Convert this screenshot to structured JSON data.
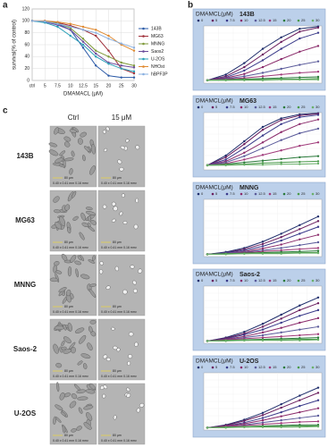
{
  "panel_labels": [
    "a",
    "b",
    "c"
  ],
  "chart_data": [
    {
      "type": "line",
      "y_label": "survival(% of control)",
      "x_label": "DMAMACL (μM)",
      "categories": [
        "ctrl",
        "5",
        "7.5",
        "10",
        "12.5",
        "15",
        "20",
        "25",
        "30"
      ],
      "ylim": [
        0,
        120
      ],
      "yticks": [
        0,
        20,
        40,
        60,
        80,
        100,
        120
      ],
      "grid": true,
      "legend": "right",
      "series": [
        {
          "name": "143B",
          "color": "#2e5ca8",
          "values": [
            100,
            98,
            95,
            85,
            55,
            25,
            8,
            5,
            5
          ]
        },
        {
          "name": "MG63",
          "color": "#a0303a",
          "values": [
            100,
            100,
            97,
            92,
            85,
            75,
            50,
            20,
            12
          ]
        },
        {
          "name": "MNNG",
          "color": "#7f9a3a",
          "values": [
            100,
            99,
            96,
            88,
            70,
            50,
            40,
            30,
            25
          ]
        },
        {
          "name": "Saos2",
          "color": "#6a4a9a",
          "values": [
            100,
            98,
            93,
            85,
            65,
            45,
            30,
            25,
            22
          ]
        },
        {
          "name": "U-2OS",
          "color": "#2aa0b8",
          "values": [
            100,
            97,
            90,
            75,
            60,
            40,
            28,
            20,
            15
          ]
        },
        {
          "name": "NHOst",
          "color": "#e08a30",
          "values": [
            100,
            100,
            98,
            95,
            90,
            85,
            75,
            60,
            50
          ]
        },
        {
          "name": "hBPF3P",
          "color": "#8ab0e0",
          "values": [
            100,
            99,
            95,
            90,
            85,
            80,
            70,
            62,
            55
          ]
        }
      ]
    },
    {
      "type": "line",
      "title": "DMAMCL(μM)",
      "subtitle": "143B",
      "ylim": [
        0,
        100
      ],
      "series": [
        {
          "name": "0",
          "color": "#1f2d6b",
          "values": [
            5,
            15,
            35,
            60,
            80,
            95,
            99
          ]
        },
        {
          "name": "5",
          "color": "#6b1f5f",
          "values": [
            5,
            12,
            28,
            50,
            72,
            90,
            97
          ]
        },
        {
          "name": "7.5",
          "color": "#3a3a8a",
          "values": [
            5,
            10,
            22,
            40,
            60,
            78,
            88
          ]
        },
        {
          "name": "10",
          "color": "#8a2a6a",
          "values": [
            5,
            9,
            16,
            28,
            42,
            55,
            65
          ]
        },
        {
          "name": "12.5",
          "color": "#5a5a9a",
          "values": [
            5,
            8,
            12,
            18,
            25,
            32,
            38
          ]
        },
        {
          "name": "15",
          "color": "#a03a7a",
          "values": [
            5,
            7,
            9,
            12,
            15,
            18,
            20
          ]
        },
        {
          "name": "20",
          "color": "#2a7a3a",
          "values": [
            5,
            6,
            7,
            8,
            9,
            10,
            11
          ]
        },
        {
          "name": "25",
          "color": "#4a9a4a",
          "values": [
            5,
            5,
            6,
            6,
            7,
            7,
            8
          ]
        },
        {
          "name": "30",
          "color": "#6ab06a",
          "values": [
            5,
            5,
            5,
            5,
            6,
            6,
            6
          ]
        }
      ]
    },
    {
      "type": "line",
      "title": "DMAMCL(μM)",
      "subtitle": "MG63",
      "ylim": [
        0,
        100
      ],
      "series": [
        {
          "name": "0",
          "color": "#1f2d6b",
          "values": [
            8,
            25,
            50,
            75,
            90,
            97,
            99
          ]
        },
        {
          "name": "5",
          "color": "#6b1f5f",
          "values": [
            8,
            22,
            45,
            70,
            87,
            95,
            98
          ]
        },
        {
          "name": "7.5",
          "color": "#3a3a8a",
          "values": [
            8,
            18,
            38,
            60,
            80,
            92,
            96
          ]
        },
        {
          "name": "10",
          "color": "#8a2a6a",
          "values": [
            8,
            15,
            30,
            48,
            66,
            80,
            88
          ]
        },
        {
          "name": "12.5",
          "color": "#5a5a9a",
          "values": [
            8,
            13,
            24,
            38,
            52,
            64,
            72
          ]
        },
        {
          "name": "15",
          "color": "#a03a7a",
          "values": [
            8,
            11,
            18,
            26,
            34,
            42,
            48
          ]
        },
        {
          "name": "20",
          "color": "#2a7a3a",
          "values": [
            8,
            10,
            13,
            16,
            19,
            22,
            24
          ]
        },
        {
          "name": "25",
          "color": "#4a9a4a",
          "values": [
            8,
            9,
            10,
            12,
            13,
            14,
            15
          ]
        },
        {
          "name": "30",
          "color": "#6ab06a",
          "values": [
            8,
            8,
            9,
            9,
            10,
            10,
            11
          ]
        }
      ]
    },
    {
      "type": "line",
      "title": "DMAMCL(μM)",
      "subtitle": "MNNG",
      "ylim": [
        0,
        100
      ],
      "series": [
        {
          "name": "0",
          "color": "#1f2d6b",
          "values": [
            4,
            8,
            15,
            26,
            40,
            55,
            70
          ]
        },
        {
          "name": "5",
          "color": "#6b1f5f",
          "values": [
            4,
            7,
            13,
            22,
            34,
            48,
            62
          ]
        },
        {
          "name": "7.5",
          "color": "#3a3a8a",
          "values": [
            4,
            7,
            11,
            18,
            28,
            40,
            52
          ]
        },
        {
          "name": "10",
          "color": "#8a2a6a",
          "values": [
            4,
            6,
            9,
            14,
            21,
            30,
            38
          ]
        },
        {
          "name": "12.5",
          "color": "#5a5a9a",
          "values": [
            4,
            6,
            8,
            11,
            15,
            20,
            25
          ]
        },
        {
          "name": "15",
          "color": "#a03a7a",
          "values": [
            4,
            5,
            7,
            9,
            11,
            13,
            15
          ]
        },
        {
          "name": "20",
          "color": "#2a7a3a",
          "values": [
            4,
            5,
            6,
            7,
            8,
            9,
            10
          ]
        },
        {
          "name": "25",
          "color": "#4a9a4a",
          "values": [
            4,
            5,
            5,
            6,
            6,
            7,
            7
          ]
        },
        {
          "name": "30",
          "color": "#6ab06a",
          "values": [
            4,
            4,
            5,
            5,
            5,
            6,
            6
          ]
        }
      ]
    },
    {
      "type": "line",
      "title": "DMAMCL(μM)",
      "subtitle": "Saos-2",
      "ylim": [
        0,
        100
      ],
      "series": [
        {
          "name": "0",
          "color": "#1f2d6b",
          "values": [
            4,
            10,
            20,
            34,
            50,
            66,
            80
          ]
        },
        {
          "name": "5",
          "color": "#6b1f5f",
          "values": [
            4,
            9,
            17,
            29,
            43,
            58,
            70
          ]
        },
        {
          "name": "7.5",
          "color": "#3a3a8a",
          "values": [
            4,
            8,
            15,
            24,
            36,
            48,
            58
          ]
        },
        {
          "name": "10",
          "color": "#8a2a6a",
          "values": [
            4,
            7,
            12,
            19,
            27,
            36,
            44
          ]
        },
        {
          "name": "12.5",
          "color": "#5a5a9a",
          "values": [
            4,
            6,
            10,
            14,
            19,
            24,
            29
          ]
        },
        {
          "name": "15",
          "color": "#a03a7a",
          "values": [
            4,
            6,
            8,
            10,
            12,
            14,
            16
          ]
        },
        {
          "name": "20",
          "color": "#2a7a3a",
          "values": [
            4,
            5,
            6,
            7,
            8,
            9,
            10
          ]
        },
        {
          "name": "25",
          "color": "#4a9a4a",
          "values": [
            4,
            5,
            5,
            6,
            6,
            7,
            7
          ]
        },
        {
          "name": "30",
          "color": "#6ab06a",
          "values": [
            4,
            4,
            5,
            5,
            5,
            5,
            6
          ]
        }
      ]
    },
    {
      "type": "line",
      "title": "DMAMCL(μM)",
      "subtitle": "U-2OS",
      "ylim": [
        0,
        100
      ],
      "series": [
        {
          "name": "0",
          "color": "#1f2d6b",
          "values": [
            4,
            9,
            18,
            30,
            45,
            60,
            74
          ]
        },
        {
          "name": "5",
          "color": "#6b1f5f",
          "values": [
            4,
            8,
            16,
            26,
            39,
            52,
            65
          ]
        },
        {
          "name": "7.5",
          "color": "#3a3a8a",
          "values": [
            4,
            7,
            13,
            21,
            31,
            42,
            52
          ]
        },
        {
          "name": "10",
          "color": "#8a2a6a",
          "values": [
            4,
            7,
            11,
            17,
            24,
            31,
            38
          ]
        },
        {
          "name": "12.5",
          "color": "#5a5a9a",
          "values": [
            4,
            6,
            9,
            13,
            17,
            21,
            25
          ]
        },
        {
          "name": "15",
          "color": "#a03a7a",
          "values": [
            4,
            6,
            8,
            10,
            12,
            14,
            15
          ]
        },
        {
          "name": "20",
          "color": "#2a7a3a",
          "values": [
            4,
            5,
            6,
            7,
            8,
            9,
            9
          ]
        },
        {
          "name": "25",
          "color": "#4a9a4a",
          "values": [
            4,
            5,
            5,
            6,
            6,
            7,
            7
          ]
        },
        {
          "name": "30",
          "color": "#6ab06a",
          "values": [
            4,
            4,
            5,
            5,
            5,
            5,
            6
          ]
        }
      ]
    }
  ],
  "micrographs": {
    "columns": [
      "Ctrl",
      "15 μM"
    ],
    "rows": [
      "143B",
      "MG63",
      "MNNG",
      "Saos-2",
      "U-2OS"
    ],
    "scale_bar": "80 µm",
    "field_info": "0.40 x 0.41 mm  0.16 mm²"
  }
}
